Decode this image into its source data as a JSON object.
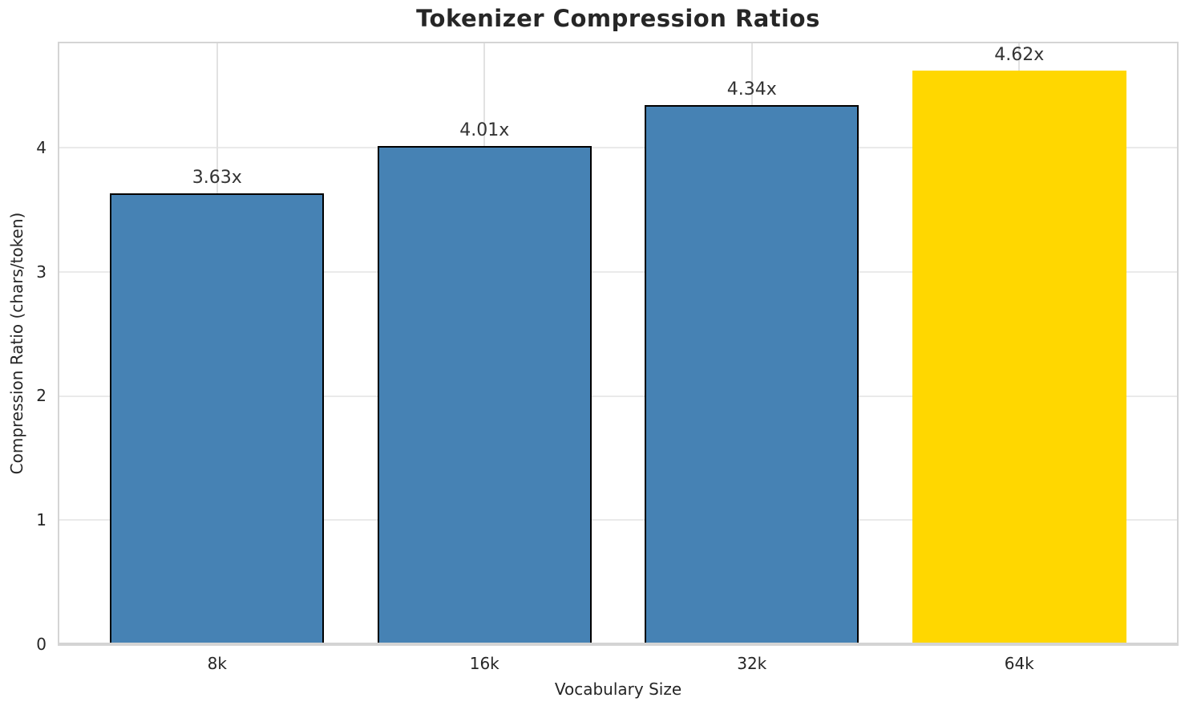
{
  "chart_data": {
    "type": "bar",
    "title": "Tokenizer Compression Ratios",
    "xlabel": "Vocabulary Size",
    "ylabel": "Compression Ratio (chars/token)",
    "categories": [
      "8k",
      "16k",
      "32k",
      "64k"
    ],
    "values": [
      3.63,
      4.01,
      4.34,
      4.62
    ],
    "bar_labels": [
      "3.63x",
      "4.01x",
      "4.34x",
      "4.62x"
    ],
    "yticks": [
      0,
      1,
      2,
      3,
      4
    ],
    "ylim": [
      0,
      4.84
    ],
    "bar_width": 0.8,
    "grid": true,
    "legend": false,
    "bar_colors": [
      "#4682B4",
      "#4682B4",
      "#4682B4",
      "#FFD700"
    ],
    "bar_edge_colors": [
      "#000000",
      "#000000",
      "#000000",
      "#FFD700"
    ],
    "colors": {
      "grid_h": "#eaeaea",
      "grid_v": "#e2e2e2",
      "spine": "#d4d4d4",
      "tick_text": "#262626",
      "value_text": "#333333"
    }
  }
}
